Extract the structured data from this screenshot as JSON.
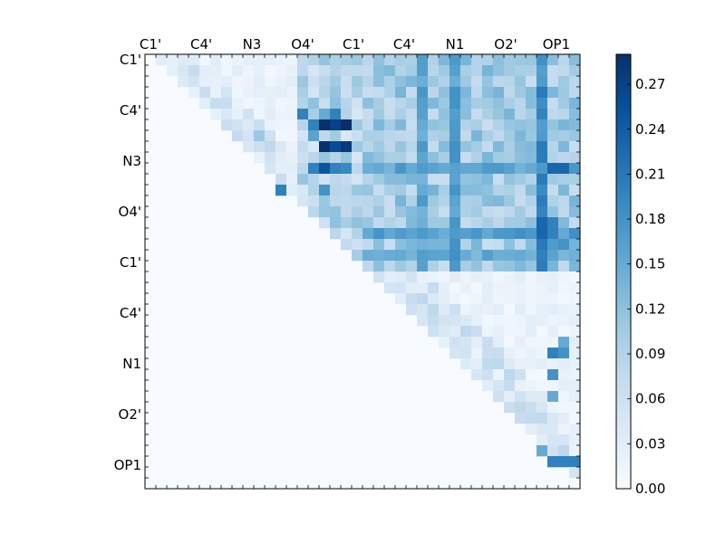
{
  "chart_data": {
    "type": "heatmap",
    "title": "",
    "n": 40,
    "x_tick_labels": [
      "C1'",
      "C4'",
      "N3",
      "O4'",
      "C1'",
      "C4'",
      "N1",
      "O2'",
      "OP1"
    ],
    "y_tick_labels": [
      "C1'",
      "C4'",
      "N3",
      "O4'",
      "C1'",
      "C4'",
      "N1",
      "O2'",
      "OP1"
    ],
    "tick_positions": [
      0,
      4.67,
      9.33,
      14,
      18.67,
      23.33,
      28,
      32.67,
      37.33
    ],
    "colorbar": {
      "range": [
        0,
        0.29
      ],
      "tick_values": [
        0.0,
        0.03,
        0.06,
        0.09,
        0.12,
        0.15,
        0.18,
        0.21,
        0.24,
        0.27
      ],
      "tick_labels": [
        "0.00",
        "0.03",
        "0.06",
        "0.09",
        "0.12",
        "0.15",
        "0.18",
        "0.21",
        "0.24",
        "0.27"
      ],
      "colormap": "Blues"
    },
    "region_values": {
      "A_block_diag_near": 0.05,
      "A_block_diag_far": 0.02,
      "A_to_B_band": 0.12,
      "B_block_diag_near": 0.05,
      "B_block_diag_far": 0.02,
      "lower_triangle": 0.0
    },
    "highlights": [
      {
        "row": 4,
        "col": 15,
        "value": 0.12
      },
      {
        "row": 5,
        "col": 14,
        "value": 0.2
      },
      {
        "row": 5,
        "col": 16,
        "value": 0.15
      },
      {
        "row": 5,
        "col": 17,
        "value": 0.2
      },
      {
        "row": 6,
        "col": 15,
        "value": 0.2
      },
      {
        "row": 6,
        "col": 16,
        "value": 0.29
      },
      {
        "row": 6,
        "col": 17,
        "value": 0.27
      },
      {
        "row": 6,
        "col": 18,
        "value": 0.29
      },
      {
        "row": 7,
        "col": 15,
        "value": 0.16
      },
      {
        "row": 7,
        "col": 10,
        "value": 0.11
      },
      {
        "row": 8,
        "col": 16,
        "value": 0.29
      },
      {
        "row": 8,
        "col": 17,
        "value": 0.26
      },
      {
        "row": 8,
        "col": 18,
        "value": 0.28
      },
      {
        "row": 10,
        "col": 15,
        "value": 0.2
      },
      {
        "row": 10,
        "col": 16,
        "value": 0.25
      },
      {
        "row": 10,
        "col": 17,
        "value": 0.2
      },
      {
        "row": 10,
        "col": 18,
        "value": 0.19
      },
      {
        "row": 12,
        "col": 12,
        "value": 0.2
      },
      {
        "row": 12,
        "col": 16,
        "value": 0.18
      },
      {
        "row": 10,
        "col": 37,
        "value": 0.23
      },
      {
        "row": 10,
        "col": 38,
        "value": 0.23
      },
      {
        "row": 15,
        "col": 36,
        "value": 0.23
      },
      {
        "row": 15,
        "col": 37,
        "value": 0.2
      },
      {
        "row": 16,
        "col": 36,
        "value": 0.23
      },
      {
        "row": 16,
        "col": 37,
        "value": 0.2
      },
      {
        "row": 17,
        "col": 37,
        "value": 0.17
      },
      {
        "row": 17,
        "col": 38,
        "value": 0.18
      },
      {
        "row": 18,
        "col": 36,
        "value": 0.2
      },
      {
        "row": 26,
        "col": 38,
        "value": 0.15
      },
      {
        "row": 27,
        "col": 37,
        "value": 0.2
      },
      {
        "row": 27,
        "col": 38,
        "value": 0.18
      },
      {
        "row": 29,
        "col": 37,
        "value": 0.18
      },
      {
        "row": 31,
        "col": 37,
        "value": 0.15
      },
      {
        "row": 36,
        "col": 36,
        "value": 0.15
      },
      {
        "row": 37,
        "col": 37,
        "value": 0.2
      },
      {
        "row": 37,
        "col": 38,
        "value": 0.2
      },
      {
        "row": 37,
        "col": 39,
        "value": 0.2
      }
    ],
    "hot_columns": [
      {
        "col": 25,
        "value": 0.16
      },
      {
        "col": 28,
        "value": 0.17
      },
      {
        "col": 36,
        "value": 0.19
      }
    ],
    "hot_rows": [
      {
        "row": 10,
        "value": 0.16
      },
      {
        "row": 16,
        "value": 0.17
      },
      {
        "row": 18,
        "value": 0.15
      }
    ]
  }
}
